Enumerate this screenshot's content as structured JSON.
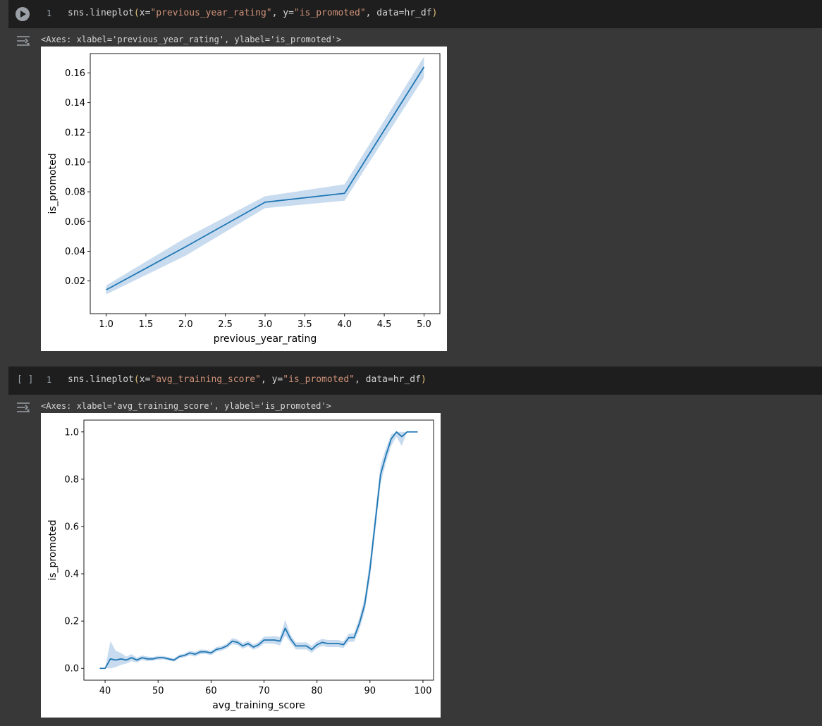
{
  "cells": [
    {
      "line_number": "1",
      "code": {
        "prefix": "sns.lineplot",
        "open": "(",
        "p1": "x=",
        "s1": "\"previous_year_rating\"",
        "p2": ", y=",
        "s2": "\"is_promoted\"",
        "p3": ", data=hr_df",
        "close": ")"
      },
      "output": "<Axes: xlabel='previous_year_rating', ylabel='is_promoted'>"
    },
    {
      "run_indicator": "[ ]",
      "line_number": "1",
      "code": {
        "prefix": "sns.lineplot",
        "open": "(",
        "p1": "x=",
        "s1": "\"avg_training_score\"",
        "p2": ", y=",
        "s2": "\"is_promoted\"",
        "p3": ", data=hr_df",
        "close": ")"
      },
      "output": "<Axes: xlabel='avg_training_score', ylabel='is_promoted'>"
    }
  ],
  "colors": {
    "line": "#1f77b4",
    "band": "#bfd6ec",
    "page_bg": "#383838",
    "code_bg": "#1e1e1e"
  },
  "chart_data": [
    {
      "type": "line",
      "xlabel": "previous_year_rating",
      "ylabel": "is_promoted",
      "x": [
        1.0,
        2.0,
        3.0,
        4.0,
        5.0
      ],
      "y": [
        0.014,
        0.043,
        0.073,
        0.079,
        0.164
      ],
      "ci_low": [
        0.011,
        0.037,
        0.069,
        0.074,
        0.157
      ],
      "ci_high": [
        0.017,
        0.049,
        0.077,
        0.085,
        0.171
      ],
      "xlim": [
        0.8,
        5.2
      ],
      "ylim": [
        -0.002,
        0.173
      ],
      "xticks": [
        "1.0",
        "1.5",
        "2.0",
        "2.5",
        "3.0",
        "3.5",
        "4.0",
        "4.5",
        "5.0"
      ],
      "yticks": [
        "0.02",
        "0.04",
        "0.06",
        "0.08",
        "0.10",
        "0.12",
        "0.14",
        "0.16"
      ],
      "grid": false
    },
    {
      "type": "line",
      "xlabel": "avg_training_score",
      "ylabel": "is_promoted",
      "x": [
        39,
        40,
        41,
        42,
        43,
        44,
        45,
        46,
        47,
        48,
        49,
        50,
        51,
        52,
        53,
        54,
        55,
        56,
        57,
        58,
        59,
        60,
        61,
        62,
        63,
        64,
        65,
        66,
        67,
        68,
        69,
        70,
        71,
        72,
        73,
        74,
        75,
        76,
        77,
        78,
        79,
        80,
        81,
        82,
        83,
        84,
        85,
        86,
        87,
        88,
        89,
        90,
        91,
        92,
        93,
        94,
        95,
        96,
        97,
        98,
        99
      ],
      "y": [
        0.0,
        0.0,
        0.04,
        0.035,
        0.04,
        0.035,
        0.045,
        0.035,
        0.045,
        0.04,
        0.04,
        0.045,
        0.045,
        0.04,
        0.035,
        0.05,
        0.055,
        0.065,
        0.06,
        0.07,
        0.07,
        0.065,
        0.08,
        0.085,
        0.095,
        0.115,
        0.11,
        0.095,
        0.105,
        0.09,
        0.1,
        0.12,
        0.12,
        0.12,
        0.115,
        0.17,
        0.125,
        0.095,
        0.095,
        0.095,
        0.08,
        0.1,
        0.11,
        0.105,
        0.105,
        0.105,
        0.1,
        0.13,
        0.13,
        0.19,
        0.27,
        0.42,
        0.62,
        0.82,
        0.9,
        0.97,
        1.0,
        0.98,
        1.0,
        1.0,
        1.0
      ],
      "ci_low": [
        0.0,
        0.0,
        0.0,
        0.005,
        0.015,
        0.02,
        0.03,
        0.025,
        0.035,
        0.03,
        0.032,
        0.037,
        0.038,
        0.033,
        0.028,
        0.042,
        0.047,
        0.055,
        0.05,
        0.06,
        0.061,
        0.056,
        0.07,
        0.075,
        0.085,
        0.102,
        0.098,
        0.083,
        0.093,
        0.079,
        0.088,
        0.105,
        0.105,
        0.103,
        0.097,
        0.14,
        0.108,
        0.08,
        0.08,
        0.08,
        0.065,
        0.085,
        0.095,
        0.09,
        0.09,
        0.09,
        0.086,
        0.113,
        0.112,
        0.165,
        0.24,
        0.38,
        0.58,
        0.78,
        0.87,
        0.94,
        0.98,
        0.94,
        1.0,
        1.0,
        1.0
      ],
      "ci_high": [
        0.0,
        0.0,
        0.115,
        0.075,
        0.065,
        0.05,
        0.06,
        0.045,
        0.055,
        0.05,
        0.048,
        0.053,
        0.052,
        0.047,
        0.042,
        0.058,
        0.063,
        0.075,
        0.07,
        0.08,
        0.079,
        0.074,
        0.09,
        0.095,
        0.105,
        0.128,
        0.122,
        0.107,
        0.117,
        0.101,
        0.112,
        0.135,
        0.135,
        0.137,
        0.133,
        0.205,
        0.142,
        0.11,
        0.11,
        0.11,
        0.095,
        0.115,
        0.125,
        0.12,
        0.12,
        0.12,
        0.114,
        0.147,
        0.148,
        0.215,
        0.3,
        0.46,
        0.66,
        0.86,
        0.93,
        0.99,
        1.0,
        1.0,
        1.0,
        1.0,
        1.0
      ],
      "xlim": [
        36.0,
        102.0
      ],
      "ylim": [
        -0.05,
        1.05
      ],
      "xticks": [
        "40",
        "50",
        "60",
        "70",
        "80",
        "90",
        "100"
      ],
      "yticks": [
        "0.0",
        "0.2",
        "0.4",
        "0.6",
        "0.8",
        "1.0"
      ],
      "grid": false
    }
  ]
}
